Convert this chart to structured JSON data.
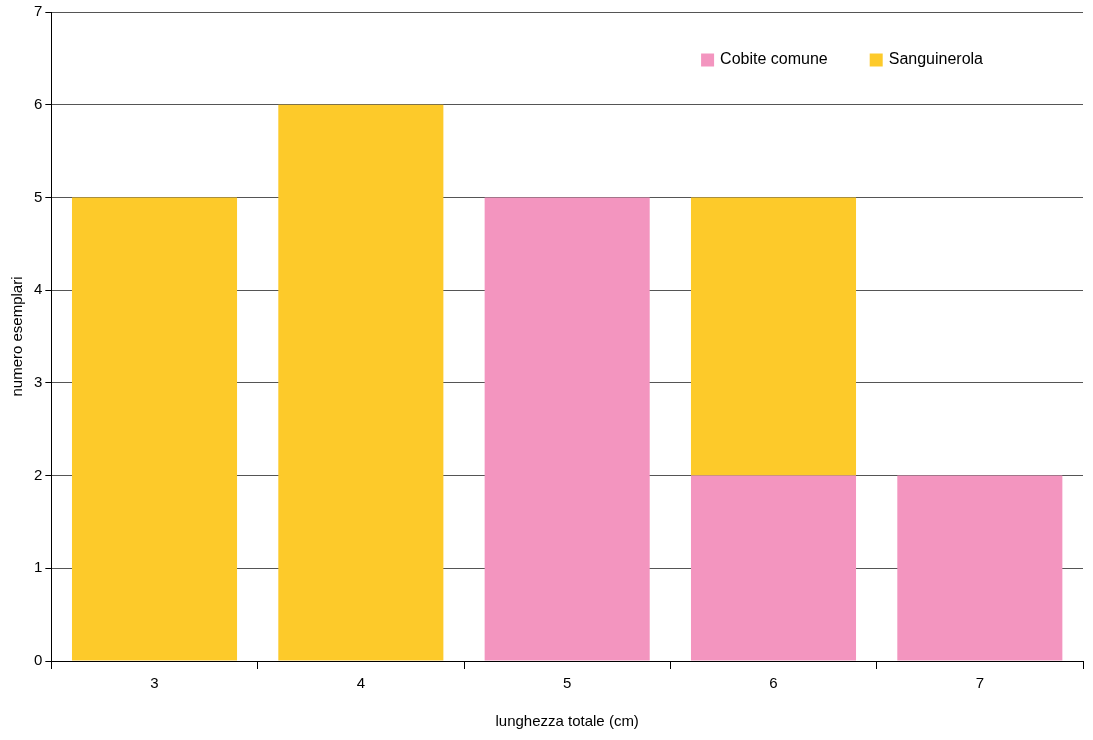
{
  "chart_data": {
    "type": "bar",
    "stacked": true,
    "xlabel": "lunghezza totale (cm)",
    "ylabel": "numero esemplari",
    "categories": [
      "3",
      "4",
      "5",
      "6",
      "7"
    ],
    "series": [
      {
        "name": "Cobite comune",
        "color": "#f395bf",
        "values": [
          0,
          0,
          5,
          2,
          2
        ]
      },
      {
        "name": "Sanguinerola",
        "color": "#fdca2a",
        "values": [
          5,
          6,
          0,
          3,
          0
        ]
      }
    ],
    "ylim": [
      0,
      7
    ],
    "yticks": [
      0,
      1,
      2,
      3,
      4,
      5,
      6,
      7
    ],
    "grid": "y",
    "legend": "top right"
  }
}
